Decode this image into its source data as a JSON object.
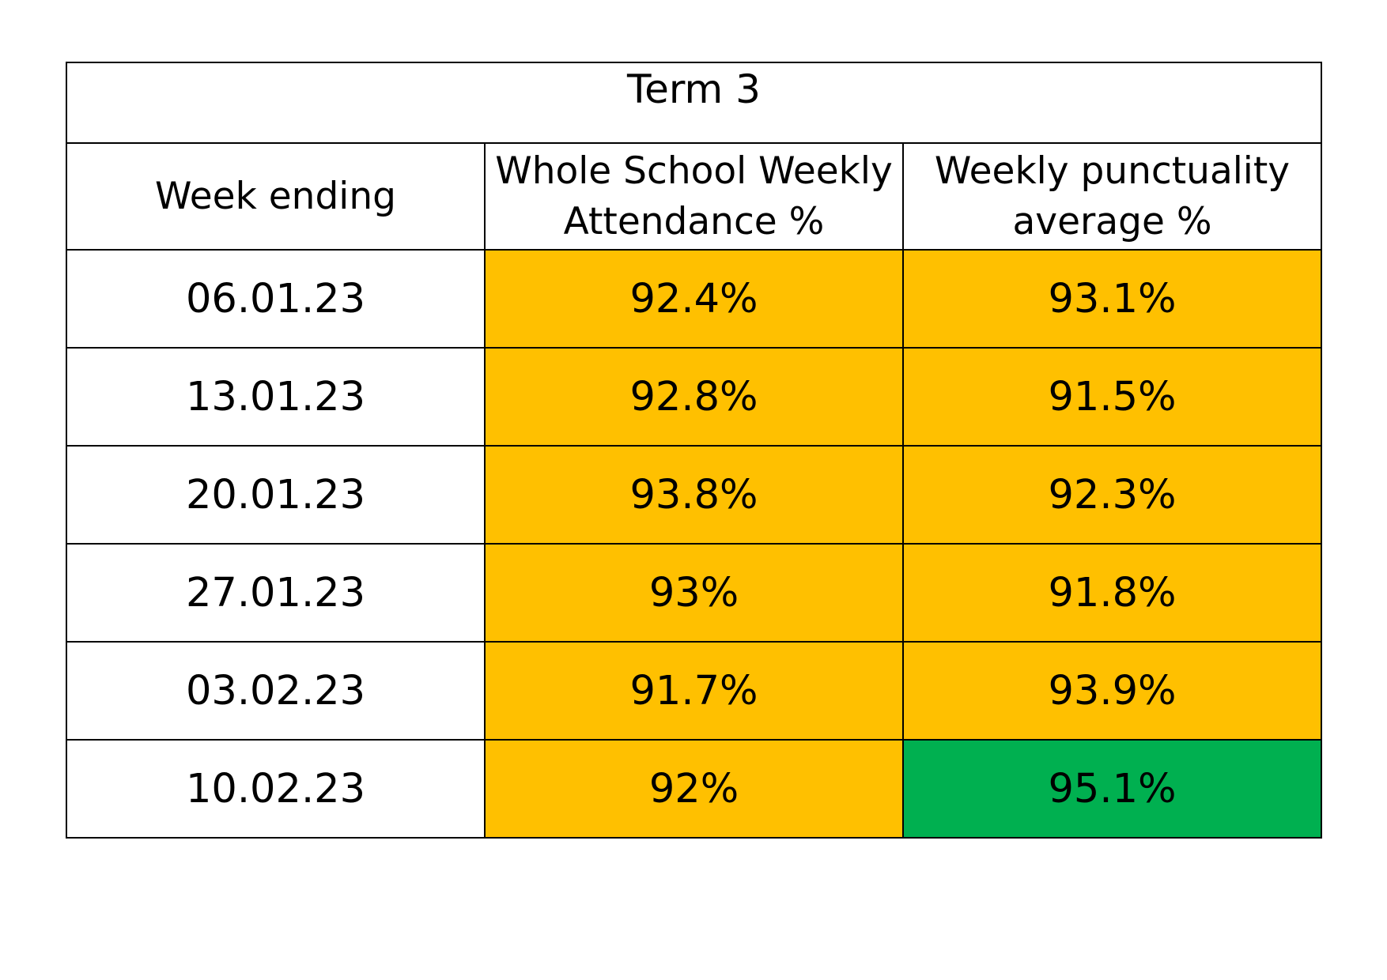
{
  "table": {
    "title": "Term 3",
    "headers": {
      "week_ending": "Week ending",
      "attendance": "Whole School Weekly Attendance  %",
      "punctuality": "Weekly punctuality average %"
    },
    "rows": [
      {
        "week": "06.01.23",
        "attendance": "92.4%",
        "punctuality": "93.1%"
      },
      {
        "week": "13.01.23",
        "attendance": "92.8%",
        "punctuality": "91.5%"
      },
      {
        "week": "20.01.23",
        "attendance": "93.8%",
        "punctuality": "92.3%"
      },
      {
        "week": "27.01.23",
        "attendance": "93%",
        "punctuality": "91.8%"
      },
      {
        "week": "03.02.23",
        "attendance": "91.7%",
        "punctuality": "93.9%"
      },
      {
        "week": "10.02.23",
        "attendance": "92%",
        "punctuality": "95.1%"
      }
    ]
  },
  "colors": {
    "amber": "#FFC000",
    "green": "#00B050",
    "border": "#000000",
    "background": "#FFFFFF"
  },
  "cell_status": {
    "attendance": [
      "amber",
      "amber",
      "amber",
      "amber",
      "amber",
      "amber"
    ],
    "punctuality": [
      "amber",
      "amber",
      "amber",
      "amber",
      "amber",
      "green"
    ]
  }
}
